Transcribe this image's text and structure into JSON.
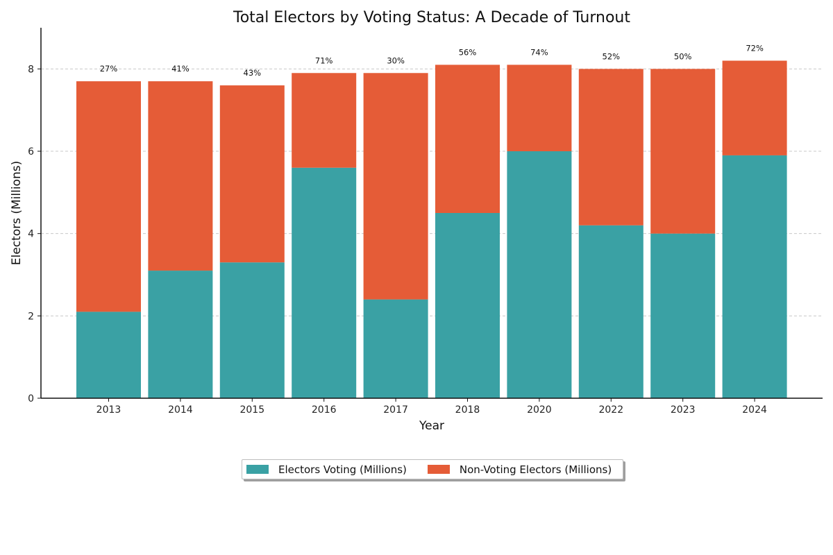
{
  "chart_data": {
    "type": "bar",
    "stacked": true,
    "title": "Total Electors by Voting Status: A Decade of Turnout",
    "xlabel": "Year",
    "ylabel": "Electors (Millions)",
    "ylim": [
      0,
      9
    ],
    "yticks": [
      0,
      2,
      4,
      6,
      8
    ],
    "grid": "horizontal dashed",
    "categories": [
      "2013",
      "2014",
      "2015",
      "2016",
      "2017",
      "2018",
      "2020",
      "2022",
      "2023",
      "2024"
    ],
    "series": [
      {
        "name": "Electors Voting (Millions)",
        "color": "#3aa1a4",
        "values": [
          2.1,
          3.1,
          3.3,
          5.6,
          2.4,
          4.5,
          6.0,
          4.2,
          4.0,
          5.9
        ]
      },
      {
        "name": "Non-Voting Electors (Millions)",
        "color": "#e55c37",
        "values": [
          5.6,
          4.6,
          4.3,
          2.3,
          5.5,
          3.6,
          2.1,
          3.8,
          4.0,
          2.3
        ]
      }
    ],
    "annotations": [
      "27%",
      "41%",
      "43%",
      "71%",
      "30%",
      "56%",
      "74%",
      "52%",
      "50%",
      "72%"
    ],
    "legend": "bottom-center"
  }
}
